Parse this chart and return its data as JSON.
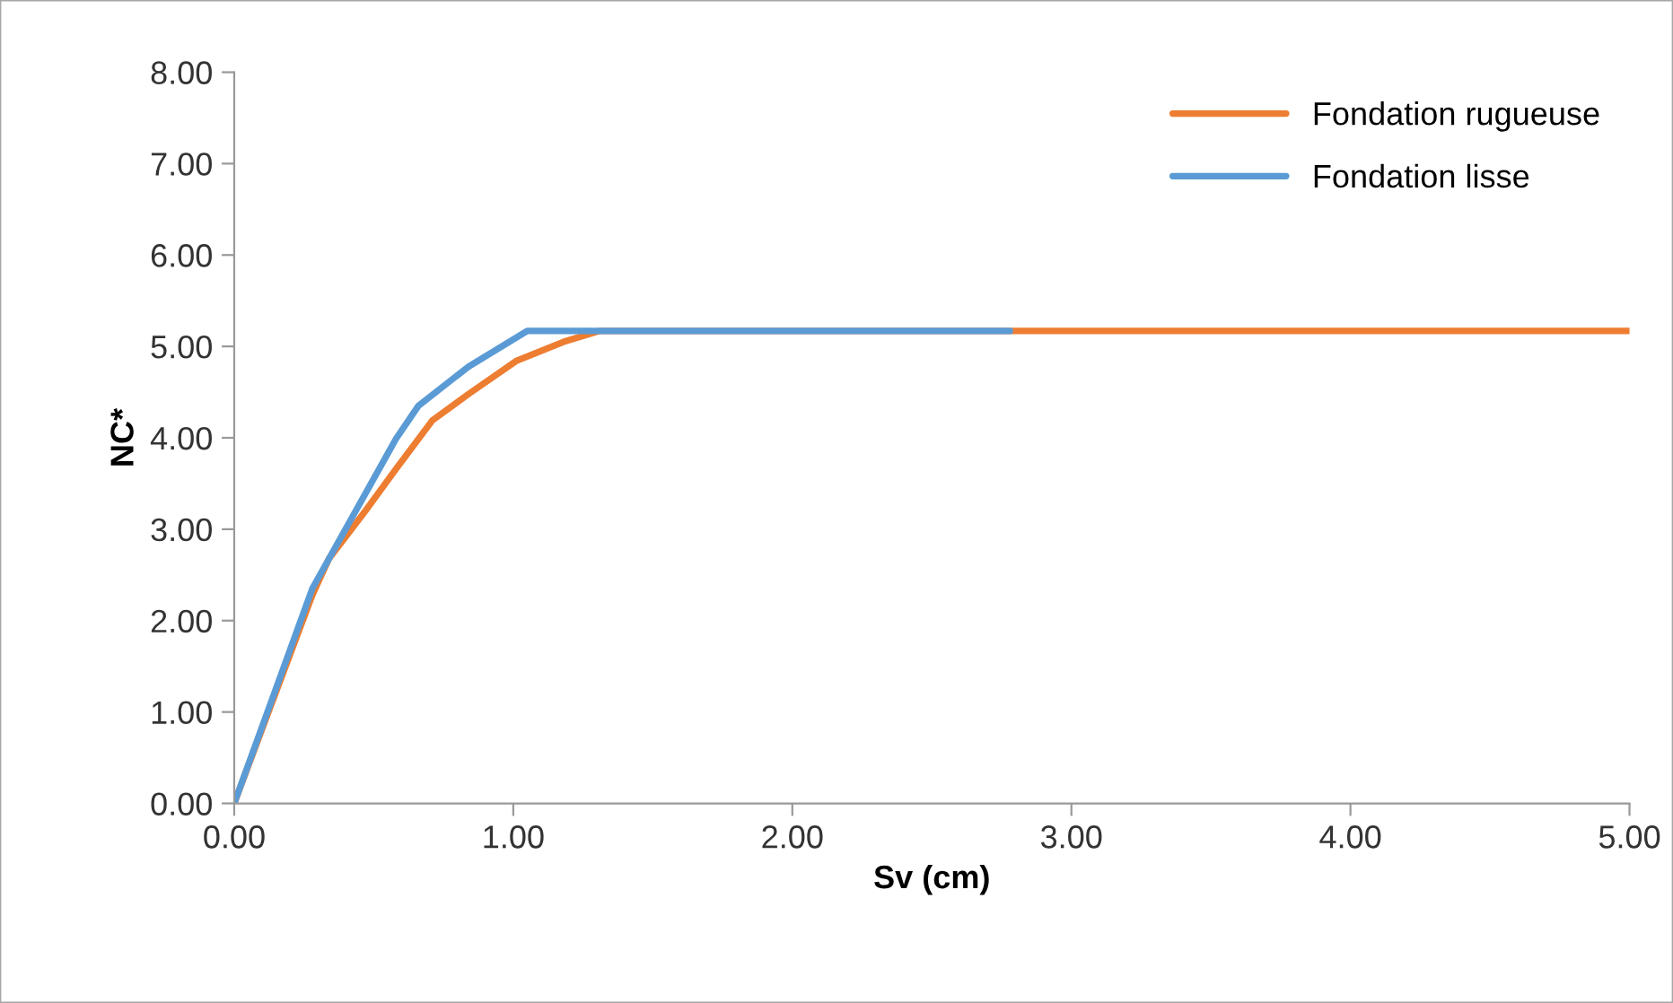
{
  "chart_data": {
    "type": "line",
    "xlabel": "Sv (cm)",
    "ylabel": "NC*",
    "xlim": [
      0,
      5
    ],
    "xticks": [
      {
        "value": 0,
        "label": "0.00"
      },
      {
        "value": 1,
        "label": "1.00"
      },
      {
        "value": 2,
        "label": "2.00"
      },
      {
        "value": 3,
        "label": "3.00"
      },
      {
        "value": 4,
        "label": "4.00"
      },
      {
        "value": 5,
        "label": "5.00"
      }
    ],
    "ylim": [
      0,
      8
    ],
    "yticks": [
      {
        "value": 0,
        "label": "0.00"
      },
      {
        "value": 1,
        "label": "1.00"
      },
      {
        "value": 2,
        "label": "2.00"
      },
      {
        "value": 3,
        "label": "3.00"
      },
      {
        "value": 4,
        "label": "4.00"
      },
      {
        "value": 5,
        "label": "5.00"
      },
      {
        "value": 6,
        "label": "6.00"
      },
      {
        "value": 7,
        "label": "7.00"
      },
      {
        "value": 8,
        "label": "8.00"
      }
    ],
    "grid": false,
    "legend": "top right",
    "marker": "none",
    "line_style": "solid",
    "series": [
      {
        "name": "Fondation rugueuse",
        "color": "#ed7d31",
        "x": [
          0,
          0.28,
          0.34,
          0.47,
          0.58,
          0.71,
          0.84,
          1.01,
          1.18,
          1.31,
          5.0
        ],
        "values": [
          0,
          2.28,
          2.68,
          3.2,
          3.66,
          4.19,
          4.48,
          4.84,
          5.05,
          5.17,
          5.17
        ]
      },
      {
        "name": "Fondation lisse",
        "color": "#5b9bd5",
        "x": [
          0,
          0.28,
          0.58,
          0.66,
          0.84,
          1.05,
          2.78
        ],
        "values": [
          0,
          2.35,
          3.99,
          4.35,
          4.78,
          5.17,
          5.17
        ]
      }
    ]
  }
}
